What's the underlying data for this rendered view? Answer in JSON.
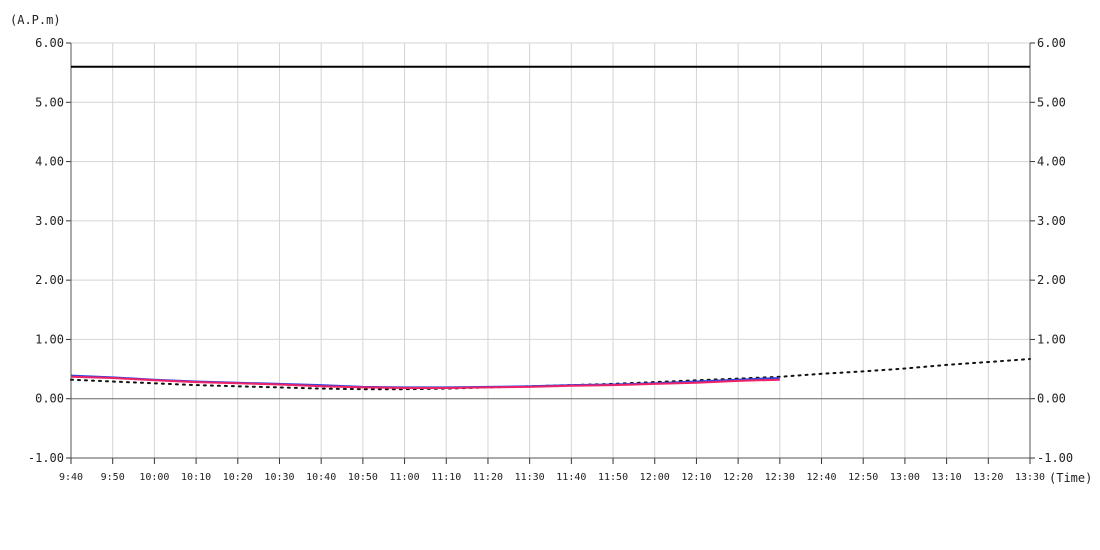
{
  "chart_data": {
    "type": "line",
    "y_unit_label": "(A.P.m)",
    "x_unit_label": "(Time)",
    "ylim": [
      -1.0,
      6.0
    ],
    "y_ticks": [
      "6.00",
      "5.00",
      "4.00",
      "3.00",
      "2.00",
      "1.00",
      "0.00",
      "-1.00"
    ],
    "y_tick_values": [
      6,
      5,
      4,
      3,
      2,
      1,
      0,
      -1
    ],
    "x_ticks": [
      "9:40",
      "9:50",
      "10:00",
      "10:10",
      "10:20",
      "10:30",
      "10:40",
      "10:50",
      "11:00",
      "11:10",
      "11:20",
      "11:30",
      "11:40",
      "11:50",
      "12:00",
      "12:10",
      "12:20",
      "12:30",
      "12:40",
      "12:50",
      "13:00",
      "13:10",
      "13:20",
      "13:30"
    ],
    "grid": true,
    "reference_line": {
      "value": 5.6,
      "color": "#000000"
    },
    "series": [
      {
        "color": "#3344dd",
        "style": "solid",
        "values": [
          0.39,
          0.36,
          0.32,
          0.29,
          0.27,
          0.25,
          0.23,
          0.2,
          0.19,
          0.19,
          0.2,
          0.21,
          0.23,
          0.24,
          0.26,
          0.29,
          0.32,
          0.35
        ]
      },
      {
        "color": "#ee2266",
        "style": "solid",
        "values": [
          0.37,
          0.35,
          0.31,
          0.28,
          0.26,
          0.24,
          0.21,
          0.19,
          0.18,
          0.18,
          0.19,
          0.2,
          0.22,
          0.23,
          0.25,
          0.27,
          0.3,
          0.32
        ]
      },
      {
        "color": "#111111",
        "style": "dotted",
        "values": [
          0.32,
          0.29,
          0.26,
          0.23,
          0.21,
          0.19,
          0.17,
          0.16,
          0.16,
          0.17,
          0.19,
          0.21,
          0.23,
          0.25,
          0.28,
          0.31,
          0.34,
          0.37,
          0.42,
          0.46,
          0.51,
          0.57,
          0.62,
          0.67
        ]
      }
    ]
  }
}
